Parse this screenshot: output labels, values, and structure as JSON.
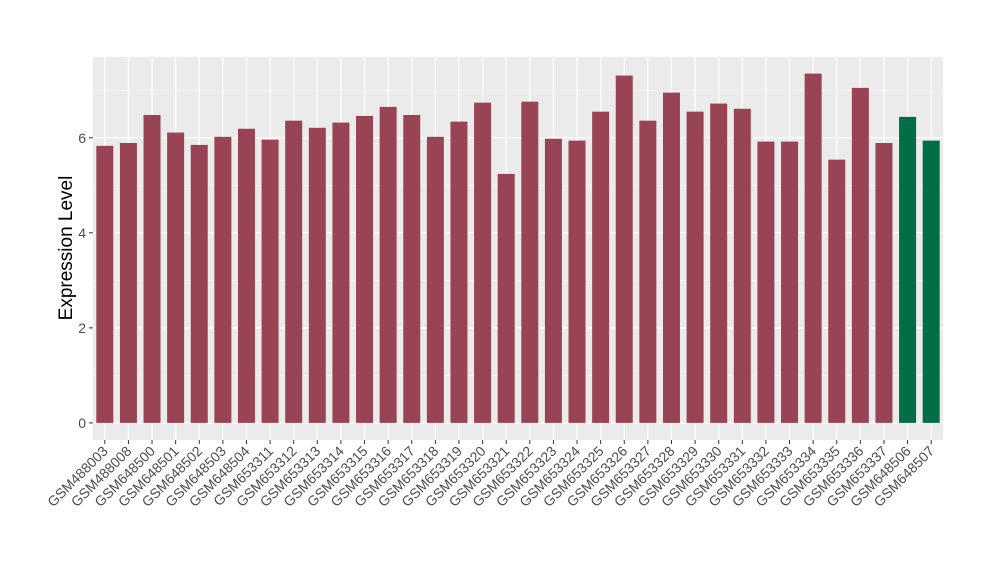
{
  "chart_data": {
    "type": "bar",
    "y_label": "Expression Level",
    "categories": [
      "GSM488003",
      "GSM488008",
      "GSM648500",
      "GSM648501",
      "GSM648502",
      "GSM648503",
      "GSM648504",
      "GSM653311",
      "GSM653312",
      "GSM653313",
      "GSM653314",
      "GSM653315",
      "GSM653316",
      "GSM653317",
      "GSM653318",
      "GSM653319",
      "GSM653320",
      "GSM653321",
      "GSM653322",
      "GSM653323",
      "GSM653324",
      "GSM653325",
      "GSM653326",
      "GSM653327",
      "GSM653328",
      "GSM653329",
      "GSM653330",
      "GSM653331",
      "GSM653332",
      "GSM653333",
      "GSM653334",
      "GSM653335",
      "GSM653336",
      "GSM653337",
      "GSM648506",
      "GSM648507"
    ],
    "values": [
      5.83,
      5.89,
      6.48,
      6.11,
      5.85,
      6.02,
      6.19,
      5.96,
      6.36,
      6.21,
      6.32,
      6.46,
      6.65,
      6.48,
      6.02,
      6.34,
      6.74,
      5.24,
      6.76,
      5.98,
      5.94,
      6.55,
      7.31,
      6.36,
      6.95,
      6.55,
      6.72,
      6.61,
      5.92,
      5.92,
      7.35,
      5.54,
      7.05,
      5.89,
      6.44,
      5.94
    ],
    "colors": [
      "#994455",
      "#994455",
      "#994455",
      "#994455",
      "#994455",
      "#994455",
      "#994455",
      "#994455",
      "#994455",
      "#994455",
      "#994455",
      "#994455",
      "#994455",
      "#994455",
      "#994455",
      "#994455",
      "#994455",
      "#994455",
      "#994455",
      "#994455",
      "#994455",
      "#994455",
      "#994455",
      "#994455",
      "#994455",
      "#994455",
      "#994455",
      "#994455",
      "#994455",
      "#994455",
      "#994455",
      "#994455",
      "#994455",
      "#994455",
      "#006d44",
      "#006d44"
    ],
    "ylim": [
      -0.36,
      7.7
    ],
    "yticks": [
      0,
      2,
      4,
      6
    ],
    "grid": true
  }
}
